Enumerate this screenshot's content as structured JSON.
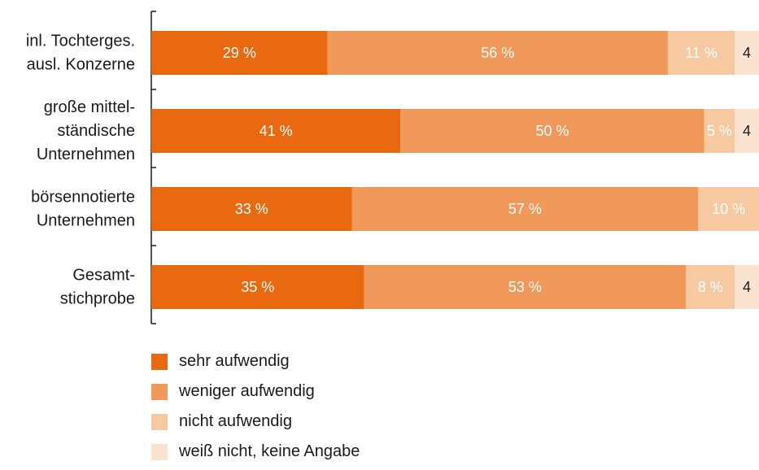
{
  "chart_data": {
    "type": "bar",
    "orientation": "horizontal",
    "stacked": true,
    "categories": [
      [
        "inl. Tochterges.",
        "ausl. Konzerne"
      ],
      [
        "große mittel-",
        "ständische",
        "Unternehmen"
      ],
      [
        "börsennotierte",
        "Unternehmen"
      ],
      [
        "Gesamt-",
        "stichprobe"
      ]
    ],
    "series": [
      {
        "name": "sehr aufwendig",
        "color": "#e8690f",
        "values": [
          29,
          41,
          33,
          35
        ],
        "labels": [
          "29 %",
          "41 %",
          "33 %",
          "35 %"
        ]
      },
      {
        "name": "weniger aufwendig",
        "color": "#f0995a",
        "values": [
          56,
          50,
          57,
          53
        ],
        "labels": [
          "56 %",
          "50 %",
          "57 %",
          "53 %"
        ]
      },
      {
        "name": "nicht aufwendig",
        "color": "#f7c9a1",
        "values": [
          11,
          5,
          10,
          8
        ],
        "labels": [
          "11 %",
          "5 %",
          "10 %",
          "8 %"
        ]
      },
      {
        "name": "weiß nicht, keine Angabe",
        "color": "#fbe3d2",
        "values": [
          4,
          4,
          0,
          4
        ],
        "labels": [
          "4",
          "4",
          "",
          "4"
        ]
      }
    ],
    "xlim": [
      0,
      100
    ],
    "grid": false,
    "legend_position": "bottom-left"
  }
}
